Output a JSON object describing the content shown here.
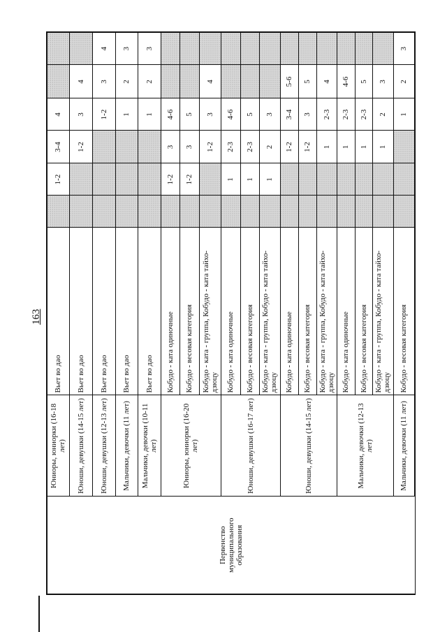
{
  "page_number": "163",
  "event": "Первенство муниципального образования",
  "groups": [
    {
      "age": "Юниоры, юниорки (16-18 лет)",
      "rows": [
        {
          "discipline": "Вьет во дао",
          "values": [
            null,
            "1-2",
            "3-4",
            "4",
            null,
            null
          ]
        }
      ]
    },
    {
      "age": "Юноши, девушки (14-15 лет)",
      "rows": [
        {
          "discipline": "Вьет во дао",
          "values": [
            null,
            null,
            "1-2",
            "3",
            "4",
            null
          ]
        }
      ]
    },
    {
      "age": "Юноши, девушки (12-13 лет)",
      "rows": [
        {
          "discipline": "Вьет во дао",
          "values": [
            null,
            null,
            null,
            "1-2",
            "3",
            "4"
          ]
        }
      ]
    },
    {
      "age": "Мальчики, девочки (11 лет)",
      "rows": [
        {
          "discipline": "Вьет во дао",
          "values": [
            null,
            null,
            null,
            "1",
            "2",
            "3"
          ]
        }
      ]
    },
    {
      "age": "Мальчики, девочки (10-11 лет)",
      "rows": [
        {
          "discipline": "Вьет во дао",
          "values": [
            null,
            null,
            null,
            "1",
            "2",
            "3"
          ]
        }
      ]
    },
    {
      "age": "Юниоры, юниорки (16-20 лет)",
      "rows": [
        {
          "discipline": "Кобудо - ката одиночные",
          "values": [
            null,
            "1-2",
            "3",
            "4-6",
            null,
            null
          ]
        },
        {
          "discipline": "Кобудо - весовая категория",
          "values": [
            null,
            "1-2",
            "3",
            "5",
            null,
            null
          ]
        },
        {
          "discipline": "Кобудо - ката - группа, Кобудо - ката тайхо-дзюцу",
          "values": [
            null,
            null,
            "1-2",
            "3",
            "4",
            null
          ]
        }
      ]
    },
    {
      "age": "Юноши, девушки (16-17 лет)",
      "rows": [
        {
          "discipline": "Кобудо - ката одиночные",
          "values": [
            null,
            "1",
            "2-3",
            "4-6",
            null,
            null
          ]
        },
        {
          "discipline": "Кобудо - весовая категория",
          "values": [
            null,
            "1",
            "2-3",
            "5",
            null,
            null
          ]
        },
        {
          "discipline": "Кобудо - ката - группа, Кобудо - ката тайхо-дзюцу",
          "values": [
            null,
            "1",
            "2",
            "3",
            null,
            null
          ]
        }
      ]
    },
    {
      "age": "Юноши, девушки (14-15 лет)",
      "rows": [
        {
          "discipline": "Кобудо - ката одиночные",
          "values": [
            null,
            null,
            "1-2",
            "3-4",
            "5-6",
            null
          ]
        },
        {
          "discipline": "Кобудо - весовая категория",
          "values": [
            null,
            null,
            "1-2",
            "3",
            "5",
            null
          ]
        },
        {
          "discipline": "Кобудо - ката - группа, Кобудо - ката тайхо-дзюцу",
          "values": [
            null,
            null,
            "1",
            "2-3",
            "4",
            null
          ]
        }
      ]
    },
    {
      "age": "Мальчики, девочки (12-13 лет)",
      "rows": [
        {
          "discipline": "Кобудо - ката одиночные",
          "values": [
            null,
            null,
            "1",
            "2-3",
            "4-6",
            null
          ]
        },
        {
          "discipline": "Кобудо - весовая категория",
          "values": [
            null,
            null,
            "1",
            "2-3",
            "5",
            null
          ]
        },
        {
          "discipline": "Кобудо - ката - группа, Кобудо - ката тайхо-дзюцу",
          "values": [
            null,
            null,
            "1",
            "2",
            "3",
            null
          ]
        }
      ]
    },
    {
      "age": "Мальчики, девочки (11 лет)",
      "rows": [
        {
          "discipline": "Кобудо - весовая категория",
          "values": [
            null,
            null,
            null,
            "1",
            "2",
            "3"
          ]
        }
      ]
    }
  ]
}
